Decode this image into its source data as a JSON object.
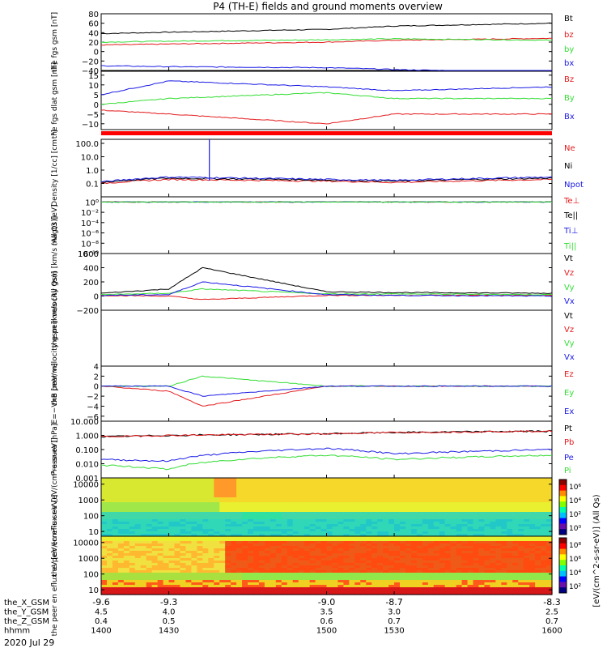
{
  "title": "P4 (TH-E) fields and ground moments overview",
  "date": "2020 Jul 29",
  "colors": {
    "black": "#000000",
    "red": "#e41a1c",
    "green": "#33dd33",
    "blue": "#1a1ae6",
    "strip_red": "#ff0000"
  },
  "x_axis": {
    "ticks": [
      "-9.6",
      "-9.3",
      "-9.0",
      "-8.7",
      "-8.3"
    ],
    "rows": [
      {
        "label": "the_X_GSM",
        "values": [
          "-9.6",
          "-9.3",
          "-9.0",
          "-8.7",
          "-8.3"
        ]
      },
      {
        "label": "the_Y_GSM",
        "values": [
          "4.5",
          "4.0",
          "3.5",
          "3.0",
          "2.5"
        ]
      },
      {
        "label": "the_Z_GSM",
        "values": [
          "0.4",
          "0.5",
          "0.6",
          "0.7",
          "0.7"
        ]
      },
      {
        "label": "hhmm",
        "values": [
          "1400",
          "1430",
          "1500",
          "1530",
          "1600"
        ]
      }
    ]
  },
  "colorbar": {
    "label": "[eV/(cm^2-s-sr-eV)] (All Qs)",
    "top_ticks": [
      "10⁶",
      "10⁴",
      "10²",
      "10⁰"
    ],
    "bottom_ticks": [
      "10⁸",
      "10⁶",
      "10⁴",
      "10²"
    ]
  },
  "chart_data": [
    {
      "type": "line",
      "ylabel": "the fgs gsm [nT]",
      "ylim": [
        -40,
        80
      ],
      "yticks": [
        "80",
        "60",
        "40",
        "20",
        "0",
        "−20",
        "−40"
      ],
      "series": [
        {
          "name": "Bt",
          "color": "black",
          "x": [
            1400,
            1430,
            1500,
            1530,
            1600
          ],
          "values": [
            38,
            41,
            47,
            54,
            60
          ]
        },
        {
          "name": "bz",
          "color": "red",
          "x": [
            1400,
            1430,
            1500,
            1530,
            1600
          ],
          "values": [
            14,
            16,
            20,
            24,
            28
          ]
        },
        {
          "name": "by",
          "color": "green",
          "x": [
            1400,
            1430,
            1500,
            1530,
            1600
          ],
          "values": [
            20,
            22,
            25,
            27,
            24
          ]
        },
        {
          "name": "bx",
          "color": "blue",
          "x": [
            1400,
            1430,
            1500,
            1530,
            1600
          ],
          "values": [
            -30,
            -32,
            -34,
            -38,
            -45
          ]
        }
      ]
    },
    {
      "type": "line",
      "ylabel": "the fgs dlat gsm [nT]",
      "ylim": [
        -13,
        17
      ],
      "yticks": [
        "15",
        "10",
        "5",
        "0",
        "−5",
        "−10"
      ],
      "series": [
        {
          "name": "Bz",
          "color": "red",
          "x": [
            1400,
            1430,
            1500,
            1530,
            1600
          ],
          "values": [
            -3,
            -5,
            -10,
            -5,
            -5
          ]
        },
        {
          "name": "By",
          "color": "green",
          "x": [
            1400,
            1430,
            1500,
            1530,
            1600
          ],
          "values": [
            0,
            3,
            6,
            3,
            3
          ]
        },
        {
          "name": "Bx",
          "color": "blue",
          "x": [
            1400,
            1430,
            1500,
            1530,
            1600
          ],
          "values": [
            5,
            12,
            9,
            7,
            9
          ]
        }
      ]
    },
    {
      "type": "line",
      "ylabel": "Density [1/cc] [cm⁻³]",
      "scale": "log",
      "ylim": [
        0.01,
        200
      ],
      "yticks": [
        "100.0",
        "10.0",
        "1.0",
        "0.1"
      ],
      "series": [
        {
          "name": "Ne",
          "color": "red",
          "x": [
            1400,
            1430,
            1500,
            1530,
            1600
          ],
          "values": [
            0.1,
            0.2,
            0.15,
            0.12,
            0.2
          ]
        },
        {
          "name": "Ni",
          "color": "black",
          "x": [
            1400,
            1430,
            1500,
            1530,
            1600
          ],
          "values": [
            0.12,
            0.25,
            0.18,
            0.15,
            0.25
          ]
        },
        {
          "name": "Npot",
          "color": "blue",
          "x": [
            1400,
            1430,
            1500,
            1530,
            1600
          ],
          "values": [
            0.13,
            0.3,
            0.2,
            0.17,
            0.3
          ]
        }
      ]
    },
    {
      "type": "line",
      "ylabel": "magt3 [eV]",
      "scale": "log",
      "ylim": [
        1e-10,
        10
      ],
      "yticks": [
        "10⁰",
        "10⁻²",
        "10⁻⁴",
        "10⁻⁶",
        "10⁻⁸",
        "10⁻¹⁰"
      ],
      "series": [
        {
          "name": "Te⊥",
          "color": "red",
          "x": [
            1400,
            1600
          ],
          "values": [
            1,
            1
          ]
        },
        {
          "name": "Te||",
          "color": "black",
          "x": [
            1400,
            1600
          ],
          "values": [
            1,
            1
          ]
        },
        {
          "name": "Ti⊥",
          "color": "blue",
          "x": [
            1400,
            1600
          ],
          "values": [
            1,
            1
          ]
        },
        {
          "name": "Ti||",
          "color": "green",
          "x": [
            1400,
            1600
          ],
          "values": [
            1,
            1
          ]
        }
      ]
    },
    {
      "type": "line",
      "ylabel": "the peir velocity gsm [km/s (All Qs)]",
      "ylim": [
        -200,
        600
      ],
      "yticks": [
        "600",
        "400",
        "200",
        "0",
        "−200"
      ],
      "series": [
        {
          "name": "Vt",
          "color": "black",
          "x": [
            1400,
            1430,
            1445,
            1500,
            1530,
            1600
          ],
          "values": [
            40,
            100,
            400,
            60,
            50,
            40
          ]
        },
        {
          "name": "Vz",
          "color": "red",
          "x": [
            1400,
            1430,
            1445,
            1500,
            1530,
            1600
          ],
          "values": [
            10,
            0,
            -50,
            10,
            10,
            10
          ]
        },
        {
          "name": "Vy",
          "color": "green",
          "x": [
            1400,
            1430,
            1445,
            1500,
            1530,
            1600
          ],
          "values": [
            20,
            40,
            100,
            30,
            30,
            20
          ]
        },
        {
          "name": "Vx",
          "color": "blue",
          "x": [
            1400,
            1430,
            1445,
            1500,
            1530,
            1600
          ],
          "values": [
            10,
            20,
            200,
            20,
            10,
            0
          ]
        }
      ]
    },
    {
      "type": "line",
      "ylabel": "the peer velocity gsm [km/s (All Qs)]",
      "yticks": [],
      "series": [
        {
          "name": "Vt",
          "color": "black",
          "values": []
        },
        {
          "name": "Vz",
          "color": "red",
          "values": []
        },
        {
          "name": "Vy",
          "color": "green",
          "values": []
        },
        {
          "name": "Vx",
          "color": "blue",
          "values": []
        }
      ]
    },
    {
      "type": "line",
      "ylabel": "E=−VxB [mV/m]",
      "ylim": [
        -7,
        4
      ],
      "yticks": [
        "4",
        "2",
        "0",
        "−2",
        "−4",
        "−6"
      ],
      "series": [
        {
          "name": "Ez",
          "color": "red",
          "x": [
            1400,
            1430,
            1445,
            1500,
            1530,
            1600
          ],
          "values": [
            0,
            -1,
            -4,
            0,
            0,
            0
          ]
        },
        {
          "name": "Ey",
          "color": "green",
          "x": [
            1400,
            1430,
            1445,
            1500,
            1530,
            1600
          ],
          "values": [
            0,
            0,
            2,
            0,
            0,
            0
          ]
        },
        {
          "name": "Ex",
          "color": "blue",
          "x": [
            1400,
            1430,
            1445,
            1500,
            1530,
            1600
          ],
          "values": [
            0,
            0,
            -2,
            0,
            0,
            0
          ]
        }
      ]
    },
    {
      "type": "line",
      "ylabel": "Pressure [nPa]",
      "scale": "log",
      "ylim": [
        0.001,
        10
      ],
      "yticks": [
        "10.000",
        "1.000",
        "0.100",
        "0.010",
        "0.001"
      ],
      "series": [
        {
          "name": "Pt",
          "color": "black",
          "x": [
            1400,
            1430,
            1500,
            1530,
            1600
          ],
          "values": [
            0.8,
            1.0,
            1.3,
            1.6,
            2.0
          ]
        },
        {
          "name": "Pb",
          "color": "red",
          "x": [
            1400,
            1430,
            1500,
            1530,
            1600
          ],
          "values": [
            0.8,
            1.0,
            1.3,
            1.6,
            2.0
          ]
        },
        {
          "name": "Pe",
          "color": "blue",
          "x": [
            1400,
            1430,
            1500,
            1530,
            1600
          ],
          "values": [
            0.02,
            0.015,
            0.12,
            0.05,
            0.1
          ]
        },
        {
          "name": "Pi",
          "color": "green",
          "x": [
            1400,
            1430,
            1500,
            1530,
            1600
          ],
          "values": [
            0.008,
            0.004,
            0.04,
            0.02,
            0.04
          ]
        }
      ]
    },
    {
      "type": "heatmap",
      "ylabel": "the peir en eflux eV [eV/(cm²-s-sr-eV)]",
      "scale": "log",
      "ylim": [
        5,
        25000
      ],
      "yticks": [
        "10000",
        "1000",
        "100",
        "10"
      ]
    },
    {
      "type": "heatmap",
      "ylabel": "the peer en eflux eV [eV/(cm²-s-sr-eV)]",
      "scale": "log",
      "ylim": [
        5,
        25000
      ],
      "yticks": [
        "10000",
        "1000",
        "100",
        "10"
      ]
    }
  ]
}
